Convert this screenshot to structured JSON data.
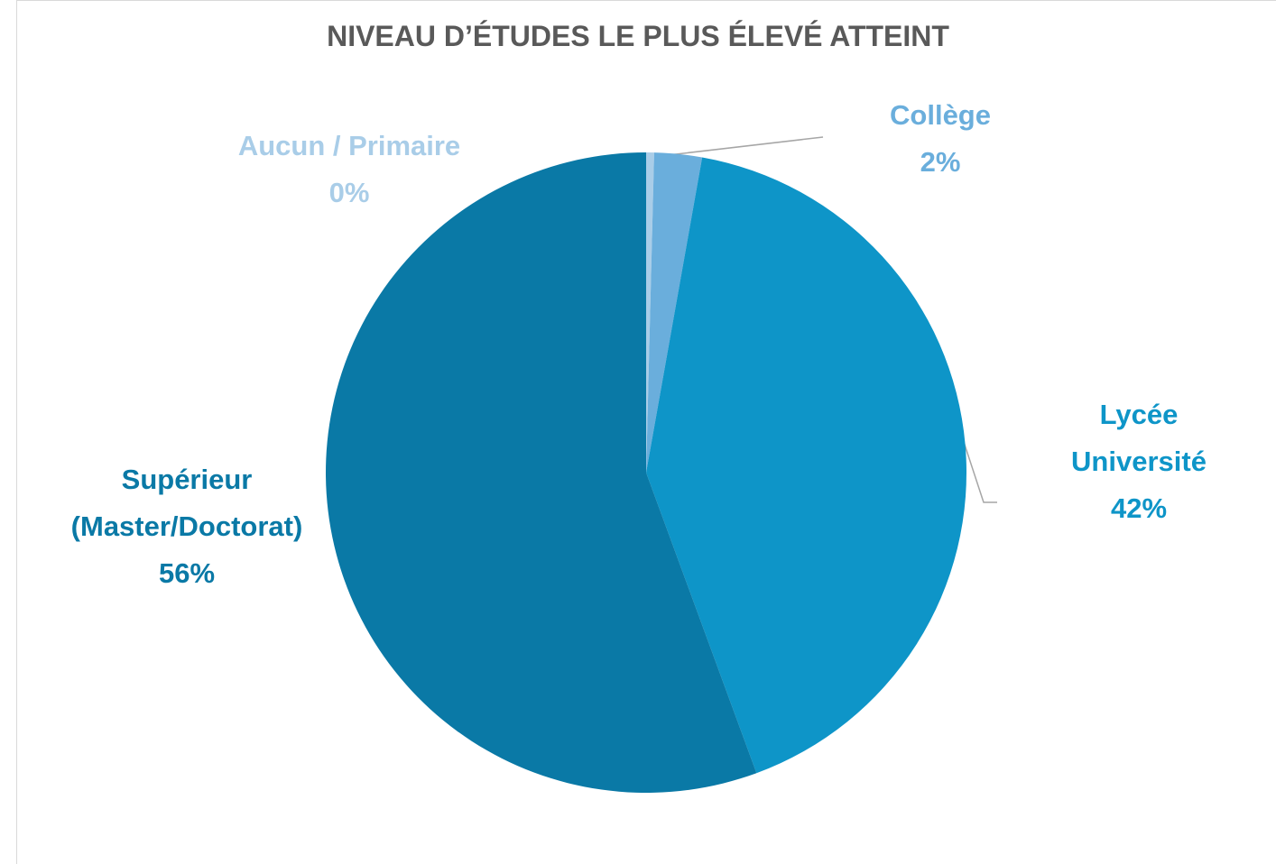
{
  "chart_data": {
    "type": "pie",
    "title": "NIVEAU D’ÉTUDES LE PLUS ÉLEVÉ ATTEINT",
    "categories": [
      "Aucun / Primaire",
      "Collège",
      "Lycée Université",
      "Supérieur (Master/Doctorat)"
    ],
    "values": [
      0.4,
      2.4,
      41.6,
      55.6
    ],
    "value_labels": [
      "0%",
      "2%",
      "42%",
      "56%"
    ],
    "colors": [
      "#a9cde8",
      "#6aaedc",
      "#0e95c8",
      "#0a79a6"
    ]
  }
}
